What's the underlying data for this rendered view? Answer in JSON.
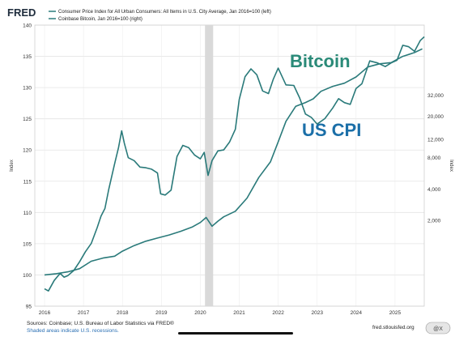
{
  "header": {
    "logo_text": "FRED",
    "legend": [
      {
        "name": "Consumer Price Index for All Urban Consumers: All Items in U.S. City Average, Jan 2016=100 (left)",
        "color": "#2a7a7a"
      },
      {
        "name": "Coinbase Bitcoin, Jan 2016=100 (right)",
        "color": "#2a7a7a"
      }
    ]
  },
  "annotations": {
    "bitcoin_label": "Bitcoin",
    "bitcoin_color": "#2a8a78",
    "cpi_label": "US CPI",
    "cpi_color": "#1b6fa8"
  },
  "footer": {
    "source": "Sources: Coinbase; U.S. Bureau of Labor Statistics via FRED®",
    "recession_note": "Shaded areas indicate U.S. recessions.",
    "url": "fred.stlouisfed.org",
    "watermark": "@X"
  },
  "chart_data": {
    "type": "line",
    "ylabel_left": "Index",
    "ylabel_right": "Index",
    "ylim_left": [
      95,
      140
    ],
    "yticks_left": [
      95,
      100,
      105,
      110,
      115,
      120,
      125,
      130,
      135,
      140
    ],
    "yticks_right": [
      "32,000",
      "20,000",
      "12,000",
      "8,000",
      "4,000",
      "2,000"
    ],
    "yticks_right_values": [
      32000,
      20000,
      12000,
      8000,
      4000,
      2000
    ],
    "xlim": [
      2015.75,
      2025.75
    ],
    "xticks": [
      "2016",
      "2017",
      "2018",
      "2019",
      "2020",
      "2021",
      "2022",
      "2023",
      "2024",
      "2025"
    ],
    "recession": [
      2020.12,
      2020.33
    ],
    "grid": true,
    "series": [
      {
        "name": "Consumer Price Index for All Urban Consumers: All Items in U.S. City Average, Jan 2016=100 (left)",
        "axis": "left",
        "x": [
          2016.0,
          2016.3,
          2016.6,
          2016.9,
          2017.2,
          2017.5,
          2017.8,
          2018.0,
          2018.3,
          2018.6,
          2018.9,
          2019.2,
          2019.5,
          2019.8,
          2020.0,
          2020.15,
          2020.3,
          2020.45,
          2020.6,
          2020.9,
          2021.2,
          2021.5,
          2021.8,
          2022.0,
          2022.2,
          2022.45,
          2022.7,
          2022.9,
          2023.1,
          2023.4,
          2023.7,
          2024.0,
          2024.3,
          2024.6,
          2024.9,
          2025.2,
          2025.5,
          2025.7
        ],
        "values": [
          100.0,
          100.2,
          100.5,
          101.0,
          102.2,
          102.7,
          103.0,
          103.8,
          104.7,
          105.4,
          105.9,
          106.4,
          107.0,
          107.7,
          108.4,
          109.2,
          107.8,
          108.6,
          109.3,
          110.2,
          112.3,
          115.6,
          118.1,
          121.3,
          124.6,
          127.0,
          127.6,
          128.2,
          129.4,
          130.2,
          130.7,
          131.7,
          133.3,
          133.8,
          134.0,
          135.0,
          135.6,
          136.2
        ]
      },
      {
        "name": "Coinbase Bitcoin, Jan 2016=100 (right)",
        "axis": "right",
        "x": [
          2016.0,
          2016.1,
          2016.25,
          2016.4,
          2016.5,
          2016.6,
          2016.75,
          2016.9,
          2017.05,
          2017.2,
          2017.35,
          2017.45,
          2017.55,
          2017.65,
          2017.8,
          2017.9,
          2017.98,
          2018.05,
          2018.15,
          2018.3,
          2018.45,
          2018.6,
          2018.75,
          2018.9,
          2018.98,
          2019.1,
          2019.25,
          2019.4,
          2019.55,
          2019.7,
          2019.85,
          2020.0,
          2020.1,
          2020.2,
          2020.3,
          2020.45,
          2020.6,
          2020.75,
          2020.9,
          2021.0,
          2021.15,
          2021.3,
          2021.45,
          2021.6,
          2021.75,
          2021.87,
          2022.0,
          2022.2,
          2022.4,
          2022.55,
          2022.7,
          2022.85,
          2023.0,
          2023.2,
          2023.4,
          2023.55,
          2023.7,
          2023.85,
          2024.0,
          2024.15,
          2024.35,
          2024.55,
          2024.75,
          2024.9,
          2025.05,
          2025.2,
          2025.35,
          2025.5,
          2025.65,
          2025.75
        ],
        "values": [
          440,
          420,
          530,
          620,
          570,
          590,
          660,
          800,
          1000,
          1200,
          1700,
          2200,
          2600,
          4000,
          7000,
          10000,
          14500,
          11000,
          8000,
          7500,
          6500,
          6400,
          6200,
          5700,
          3600,
          3500,
          3900,
          8200,
          10500,
          10000,
          8500,
          7800,
          9000,
          5400,
          7500,
          9300,
          9500,
          11300,
          15000,
          29000,
          48000,
          57000,
          50000,
          35000,
          33000,
          45000,
          58000,
          40000,
          39500,
          30000,
          21000,
          19500,
          16800,
          19000,
          24000,
          29500,
          27000,
          26000,
          37000,
          41000,
          68000,
          65000,
          60000,
          65000,
          69000,
          96000,
          93000,
          84000,
          107000,
          116000
        ]
      }
    ]
  }
}
